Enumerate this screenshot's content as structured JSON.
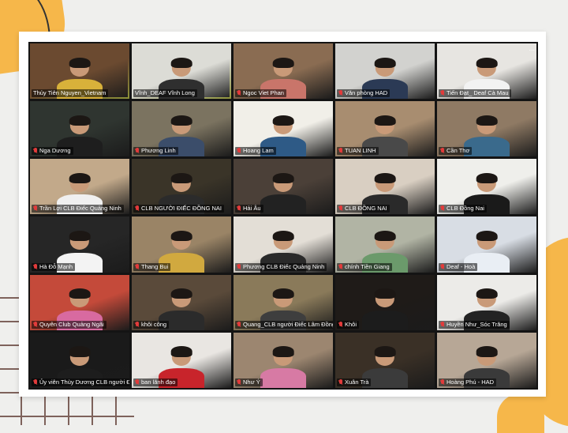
{
  "app": "Zoom gallery view",
  "participants": [
    {
      "name": "Thủy Tiên Nguyen_Vietnam",
      "muted": false,
      "active": true,
      "bg": "#6b4a30",
      "shirt": "#d8b13a"
    },
    {
      "name": "Vĩnh_DEAF Vĩnh Long",
      "muted": false,
      "active": true,
      "bg": "#dcdcd6",
      "shirt": "#2f2f2f"
    },
    {
      "name": "Ngoc Viet Phan",
      "muted": true,
      "active": false,
      "bg": "#8a6c52",
      "shirt": "#c9756a"
    },
    {
      "name": "Văn phòng HAD",
      "muted": true,
      "active": false,
      "bg": "#d2d2cf",
      "shirt": "#2b3a55"
    },
    {
      "name": "Tiến Đạt_ Deaf Cà Mau",
      "muted": true,
      "active": false,
      "bg": "#e7e5e1",
      "shirt": "#f2f2f2",
      "dots": "..."
    },
    {
      "name": "Nga Dương",
      "muted": true,
      "active": false,
      "bg": "#2f3530",
      "shirt": "#1e1e1e"
    },
    {
      "name": "Phương Linh",
      "muted": true,
      "active": false,
      "bg": "#7b7360",
      "shirt": "#3b4d6a"
    },
    {
      "name": "Hoang Lam",
      "muted": true,
      "active": false,
      "bg": "#f1efe8",
      "shirt": "#2e5a86"
    },
    {
      "name": "TUAN LINH",
      "muted": true,
      "active": false,
      "bg": "#a88d70",
      "shirt": "#494949"
    },
    {
      "name": "Cần Thơ",
      "muted": true,
      "active": false,
      "bg": "#8f7a64",
      "shirt": "#3a6a8c"
    },
    {
      "name": "Trần Lợi CLB Điếc Quảng Ninh",
      "muted": true,
      "active": false,
      "bg": "#c2a98a",
      "shirt": "#f0f0f0"
    },
    {
      "name": "CLB NGƯỜI ĐIẾC ĐỒNG NAI",
      "muted": true,
      "active": false,
      "bg": "#3a3428",
      "shirt": "#2b2b2b"
    },
    {
      "name": "Hải Âu",
      "muted": true,
      "active": false,
      "bg": "#4b4038",
      "shirt": "#222222"
    },
    {
      "name": "CLB ĐỒNG NAI",
      "muted": true,
      "active": false,
      "bg": "#d9cfc2",
      "shirt": "#2a2a2a"
    },
    {
      "name": "CLB Đồng Nai",
      "muted": true,
      "active": false,
      "bg": "#efefeb",
      "shirt": "#1a1a1a"
    },
    {
      "name": "Hà Đỗ Mạnh",
      "muted": true,
      "active": false,
      "bg": "#262626",
      "shirt": "#f3f3f3"
    },
    {
      "name": "Thang Bui",
      "muted": true,
      "active": false,
      "bg": "#9a8466",
      "shirt": "#d1a93f"
    },
    {
      "name": "Phương CLB Điếc Quảng Ninh",
      "muted": true,
      "active": false,
      "bg": "#e3ded6",
      "shirt": "#2a2a2a"
    },
    {
      "name": "chính Tiền Giang",
      "muted": true,
      "active": false,
      "bg": "#b1b4a4",
      "shirt": "#6b9a6b"
    },
    {
      "name": "Deaf - Hoà",
      "muted": true,
      "active": false,
      "bg": "#d8dde4",
      "shirt": "#e9eef4"
    },
    {
      "name": "Quyên Club Quảng Ngãi",
      "muted": true,
      "active": false,
      "bg": "#c44a3a",
      "shirt": "#d86aa0"
    },
    {
      "name": "khôi công",
      "muted": true,
      "active": false,
      "bg": "#5a4a3a",
      "shirt": "#2b2b2b"
    },
    {
      "name": "Quang_CLB người Điếc Lâm Đồng",
      "muted": true,
      "active": false,
      "bg": "#8a7a5a",
      "shirt": "#3e3e3e"
    },
    {
      "name": "Khôi",
      "muted": true,
      "active": false,
      "bg": "#1f1b18",
      "shirt": "#1c1c1c"
    },
    {
      "name": "Huyền Như_Sóc Trăng",
      "muted": true,
      "active": false,
      "bg": "#ecebe8",
      "shirt": "#232323"
    },
    {
      "name": "Ủy viên Thùy Dương CLB người Điếc",
      "muted": true,
      "active": false,
      "bg": "#1a1a1a",
      "shirt": "#1d1d1d"
    },
    {
      "name": "ban lãnh đạo",
      "muted": true,
      "active": false,
      "bg": "#e9e6e2",
      "shirt": "#c8242b"
    },
    {
      "name": "Như Ý",
      "muted": true,
      "active": false,
      "bg": "#9c8670",
      "shirt": "#d77aa4"
    },
    {
      "name": "Xuân Trà",
      "muted": true,
      "active": false,
      "bg": "#3a3026",
      "shirt": "#3b3b3b"
    },
    {
      "name": "Hoàng Phú - HAD",
      "muted": true,
      "active": false,
      "bg": "#b7a796",
      "shirt": "#3a3a3a"
    }
  ]
}
